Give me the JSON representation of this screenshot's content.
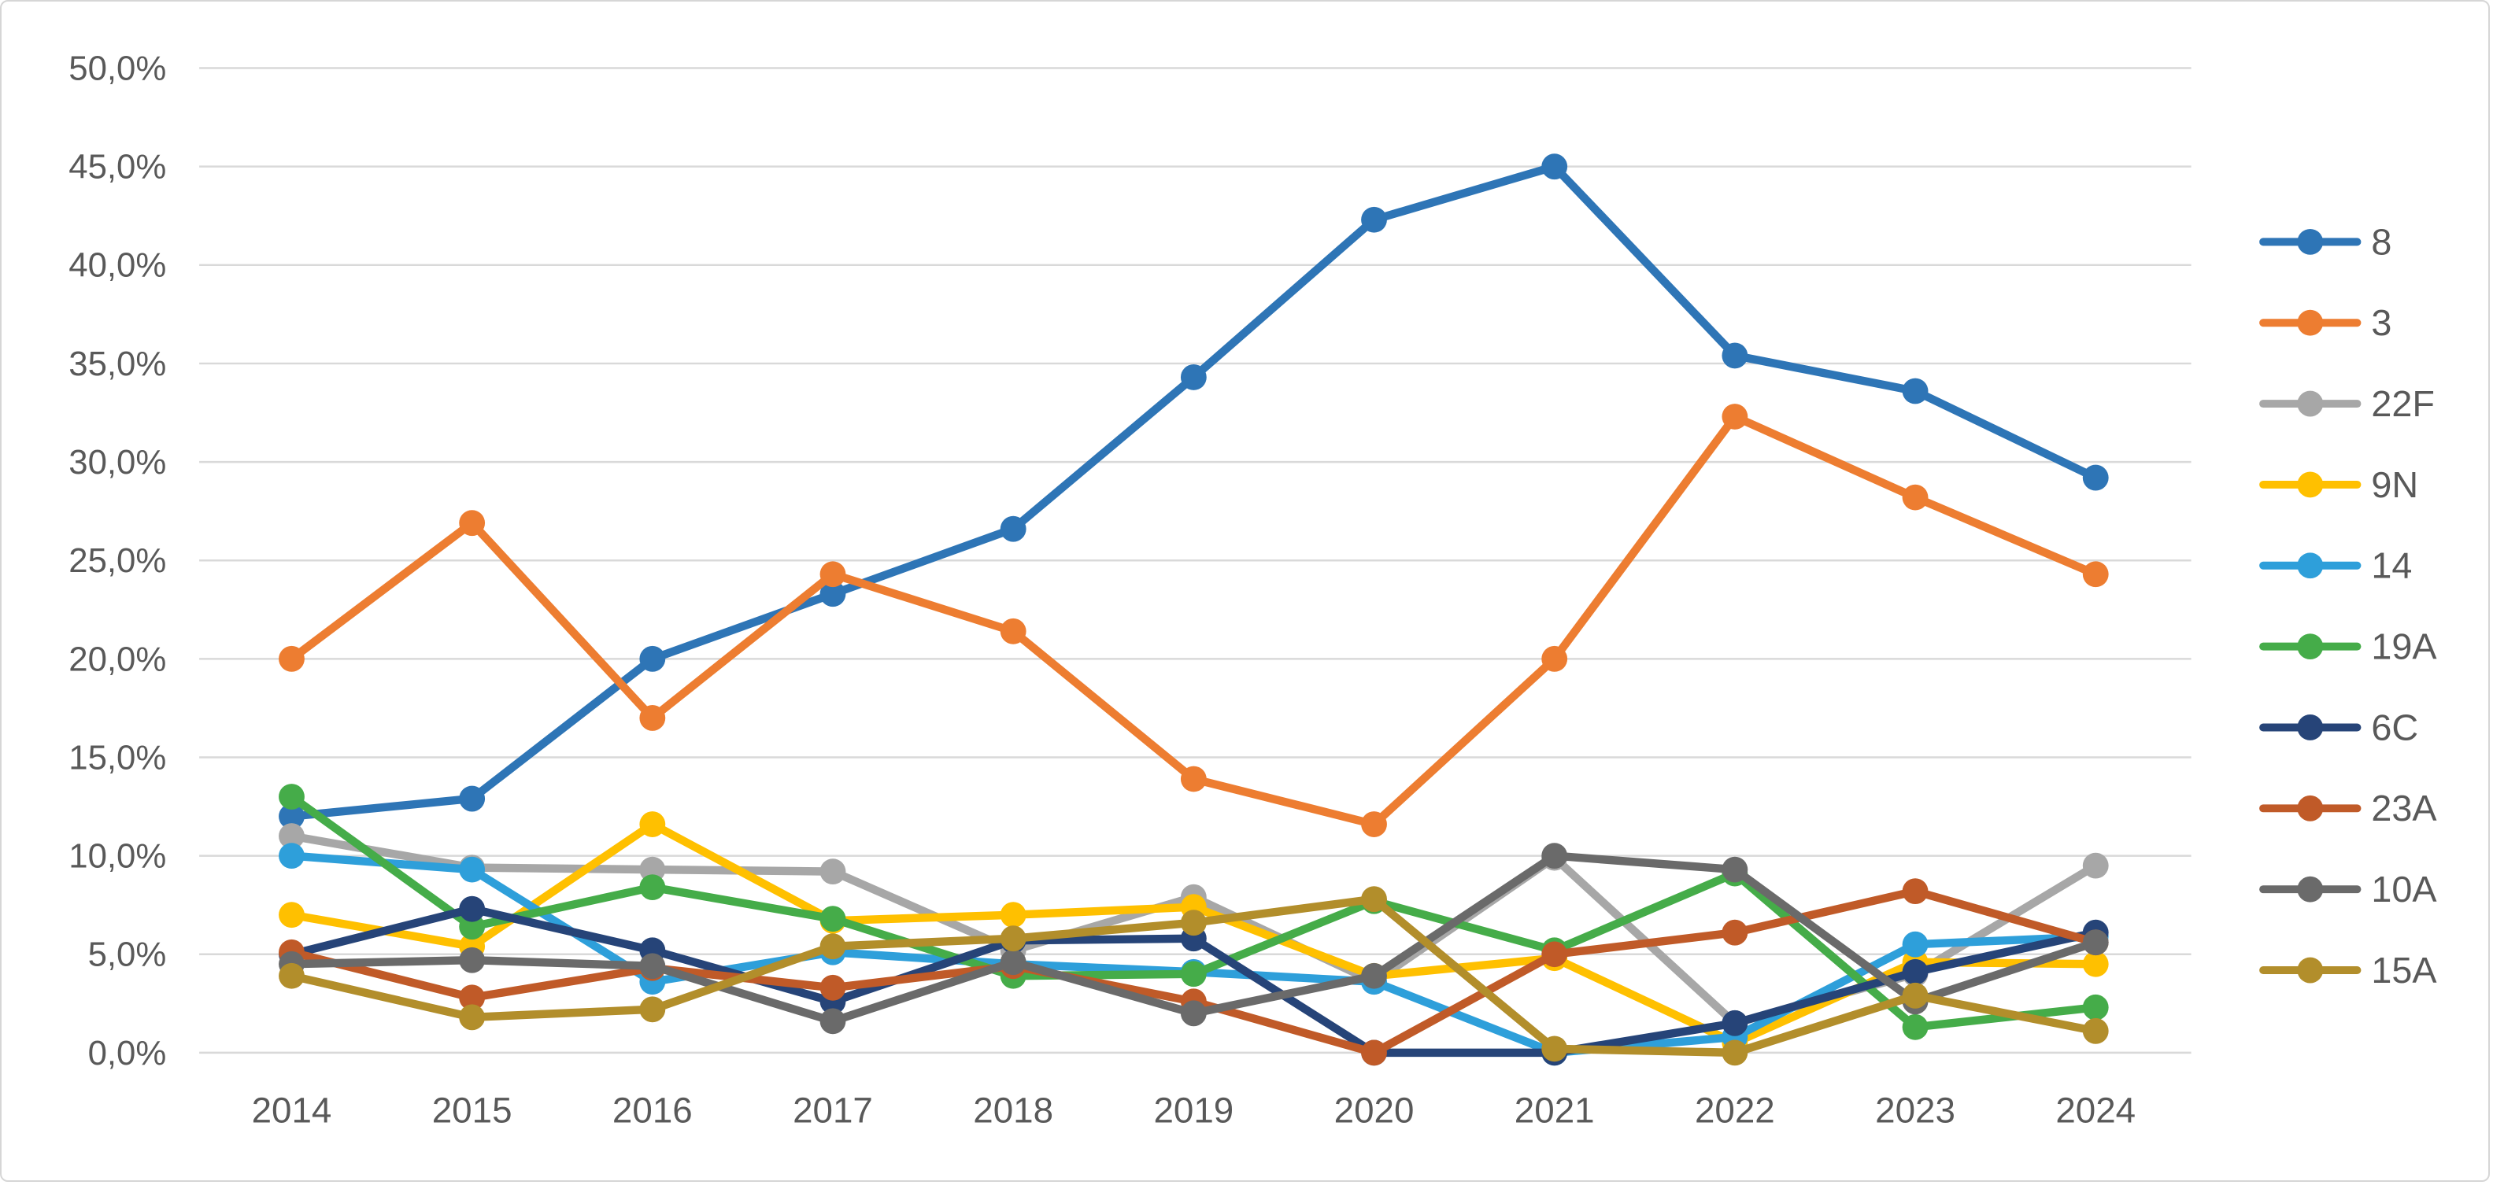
{
  "chart_data": {
    "type": "line",
    "title": "",
    "xlabel": "",
    "ylabel": "",
    "categories": [
      "2014",
      "2015",
      "2016",
      "2017",
      "2018",
      "2019",
      "2020",
      "2021",
      "2022",
      "2023",
      "2024"
    ],
    "y_axis": {
      "min": 0,
      "max": 50,
      "step": 5,
      "tick_labels": [
        "50,0%",
        "45,0%",
        "40,0%",
        "35,0%",
        "30,0%",
        "25,0%",
        "20,0%",
        "15,0%",
        "10,0%",
        "5,0%",
        "0,0%"
      ],
      "decimal_separator": ",",
      "unit": "%"
    },
    "grid": true,
    "gridline_color": "#d9d9d9",
    "legend_position": "right",
    "text_color": "#595959",
    "series": [
      {
        "name": "8",
        "color": "#2e75b6",
        "values": [
          12.0,
          12.9,
          20.0,
          23.3,
          26.6,
          34.3,
          42.3,
          45.0,
          35.4,
          33.6,
          29.2
        ]
      },
      {
        "name": "3",
        "color": "#ed7d31",
        "values": [
          20.0,
          26.9,
          17.0,
          24.3,
          21.4,
          13.9,
          11.6,
          20.0,
          32.3,
          28.2,
          24.3
        ]
      },
      {
        "name": "22F",
        "color": "#a7a7a7",
        "values": [
          11.0,
          9.4,
          9.3,
          9.2,
          5.2,
          7.9,
          3.6,
          9.9,
          1.5,
          4.0,
          9.5
        ]
      },
      {
        "name": "9N",
        "color": "#ffc000",
        "values": [
          7.0,
          5.4,
          11.6,
          6.7,
          7.0,
          7.4,
          3.9,
          4.8,
          0.5,
          4.6,
          4.5
        ]
      },
      {
        "name": "14",
        "color": "#2e9fda",
        "values": [
          10.0,
          9.3,
          3.6,
          5.1,
          4.5,
          4.1,
          3.6,
          0.0,
          0.8,
          5.5,
          5.9
        ]
      },
      {
        "name": "19A",
        "color": "#45ac49",
        "values": [
          13.0,
          6.4,
          8.4,
          6.8,
          3.9,
          4.0,
          7.7,
          5.2,
          9.1,
          1.3,
          2.3
        ]
      },
      {
        "name": "6C",
        "color": "#264478",
        "values": [
          5.0,
          7.3,
          5.2,
          2.6,
          5.7,
          5.8,
          0.0,
          0.0,
          1.5,
          4.1,
          6.1
        ]
      },
      {
        "name": "23A",
        "color": "#c05a28",
        "values": [
          5.1,
          2.8,
          4.3,
          3.3,
          4.4,
          2.6,
          0.0,
          5.0,
          6.1,
          8.2,
          5.6
        ]
      },
      {
        "name": "10A",
        "color": "#6a6a6a",
        "values": [
          4.5,
          4.7,
          4.4,
          1.6,
          4.6,
          2.0,
          3.9,
          10.0,
          9.3,
          2.6,
          5.6
        ]
      },
      {
        "name": "15A",
        "color": "#b28e2b",
        "values": [
          3.9,
          1.8,
          2.2,
          5.4,
          5.8,
          6.6,
          7.8,
          0.2,
          0.0,
          2.9,
          1.1
        ]
      }
    ]
  }
}
